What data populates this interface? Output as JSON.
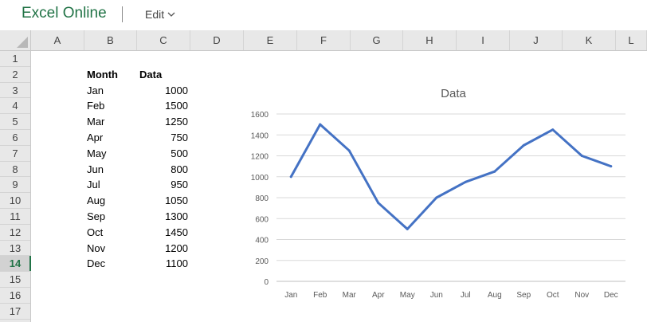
{
  "app": {
    "title": "Excel Online",
    "edit_label": "Edit"
  },
  "columns": [
    "A",
    "B",
    "C",
    "D",
    "E",
    "F",
    "G",
    "H",
    "I",
    "J",
    "K",
    "L"
  ],
  "rows": [
    "1",
    "2",
    "3",
    "4",
    "5",
    "6",
    "7",
    "8",
    "9",
    "10",
    "11",
    "12",
    "13",
    "14",
    "15",
    "16",
    "17"
  ],
  "active_row": "14",
  "table": {
    "headers": [
      "Month",
      "Data"
    ],
    "months": [
      "Jan",
      "Feb",
      "Mar",
      "Apr",
      "May",
      "Jun",
      "Jul",
      "Aug",
      "Sep",
      "Oct",
      "Nov",
      "Dec"
    ],
    "values": [
      "1000",
      "1500",
      "1250",
      "750",
      "500",
      "800",
      "950",
      "1050",
      "1300",
      "1450",
      "1200",
      "1100"
    ]
  },
  "chart_data": {
    "type": "line",
    "title": "Data",
    "categories": [
      "Jan",
      "Feb",
      "Mar",
      "Apr",
      "May",
      "Jun",
      "Jul",
      "Aug",
      "Sep",
      "Oct",
      "Nov",
      "Dec"
    ],
    "series": [
      {
        "values": [
          1000,
          1500,
          1250,
          750,
          500,
          800,
          950,
          1050,
          1300,
          1450,
          1200,
          1100
        ]
      }
    ],
    "y_ticks": [
      0,
      200,
      400,
      600,
      800,
      1000,
      1200,
      1400,
      1600
    ],
    "ylim": [
      0,
      1600
    ],
    "grid": true,
    "legend": "none",
    "line_color": "#4472c4"
  }
}
